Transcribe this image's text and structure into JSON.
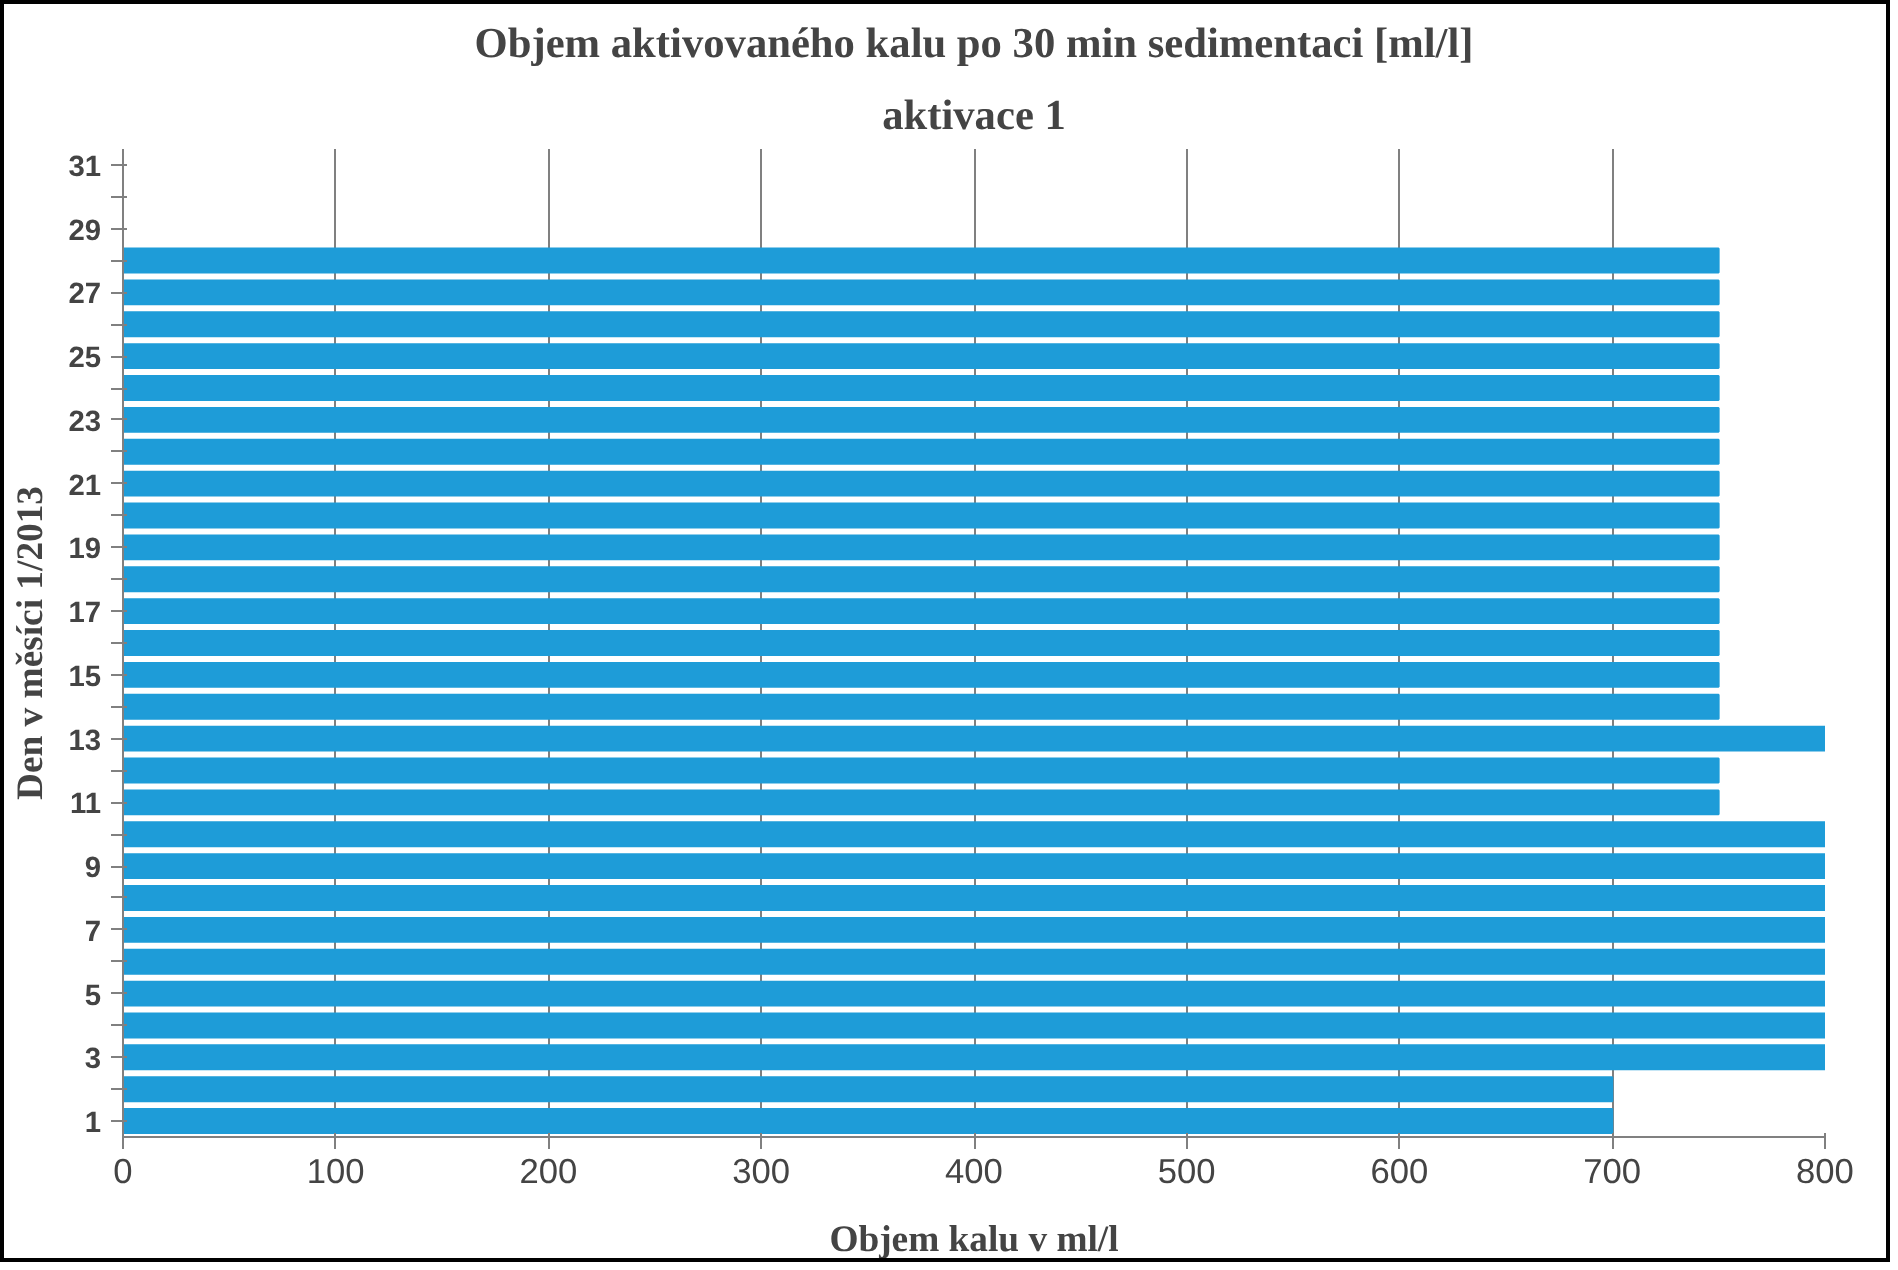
{
  "chart_data": {
    "type": "bar",
    "orientation": "horizontal",
    "title": "Objem aktivovaného kalu po 30 min sedimentaci [ml/l]",
    "subtitle": "aktivace 1",
    "xlabel": "Objem kalu v ml/l",
    "ylabel": "Den v měsíci 1/2013",
    "categories": [
      "31",
      null,
      "29",
      null,
      "27",
      null,
      "25",
      null,
      "23",
      null,
      "21",
      null,
      "19",
      null,
      "17",
      null,
      "15",
      null,
      "13",
      null,
      "11",
      null,
      "9",
      null,
      "7",
      null,
      "5",
      null,
      "3",
      null,
      "1"
    ],
    "values": [
      null,
      null,
      null,
      750,
      750,
      750,
      750,
      750,
      750,
      750,
      750,
      750,
      750,
      750,
      750,
      750,
      750,
      750,
      800,
      750,
      750,
      800,
      800,
      800,
      800,
      800,
      800,
      800,
      800,
      700,
      700
    ],
    "color": "#1e9cd8",
    "xlim": [
      0,
      800
    ],
    "xticks": [
      0,
      100,
      200,
      300,
      400,
      500,
      600,
      700,
      800
    ],
    "grid": "x"
  }
}
